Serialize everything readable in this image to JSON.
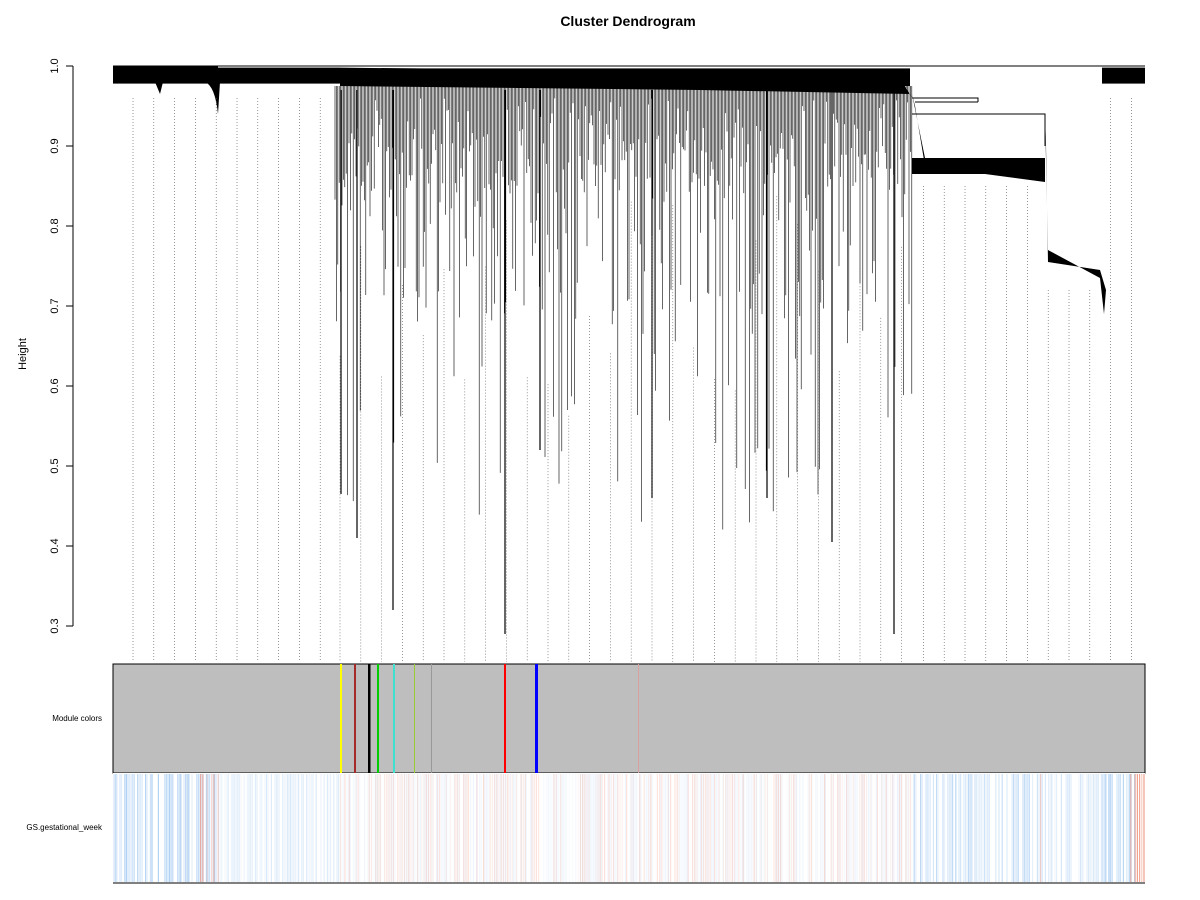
{
  "chart_data": {
    "type": "dendrogram",
    "title": "Cluster Dendrogram",
    "ylabel": "Height",
    "xlabel": "",
    "ylim": [
      0.3,
      1.0
    ],
    "yticks": [
      0.3,
      0.4,
      0.5,
      0.6,
      0.7,
      0.8,
      0.9,
      1.0
    ],
    "ytick_labels": [
      "0.3",
      "0.4",
      "0.5",
      "0.6",
      "0.7",
      "0.8",
      "0.9",
      "1.0"
    ],
    "grid": false,
    "merge_heights": {
      "top_merge": 1.0,
      "right_cluster_main": 0.955,
      "right_cluster_secondary": 0.94,
      "mid_band_level": 0.875,
      "lower_band_level": 0.755,
      "lowest_leaf": 0.29
    },
    "color_rows": [
      {
        "label": "Module colors",
        "background": "#bebebe",
        "modules": [
          {
            "name": "yellow",
            "color": "#ffff00"
          },
          {
            "name": "brown",
            "color": "#a52a2a"
          },
          {
            "name": "black",
            "color": "#000000"
          },
          {
            "name": "green",
            "color": "#00cc00"
          },
          {
            "name": "turquoise",
            "color": "#40e0d0"
          },
          {
            "name": "greenyellow",
            "color": "#9acd32"
          },
          {
            "name": "grey60",
            "color": "#999999"
          },
          {
            "name": "red",
            "color": "#ff0000"
          },
          {
            "name": "blue",
            "color": "#0000ff"
          },
          {
            "name": "pink",
            "color": "#d8a0a0"
          }
        ]
      },
      {
        "label": "GS.gestational_week",
        "background": "#ffffff",
        "negative_color": "#6aa8e8",
        "positive_color": "#e86040"
      }
    ]
  }
}
